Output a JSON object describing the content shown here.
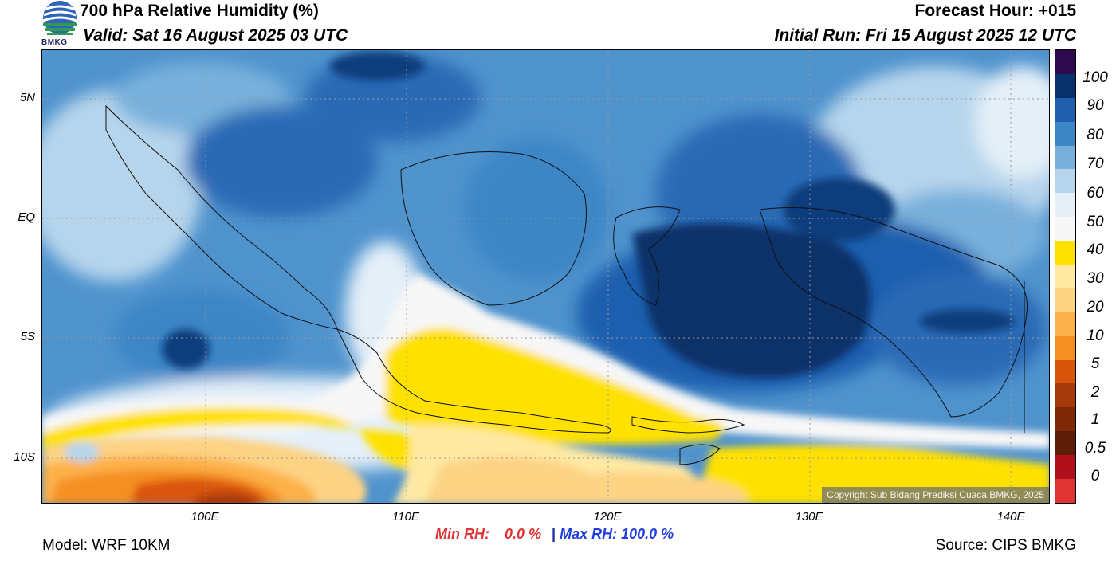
{
  "header": {
    "title": "700 hPa Relative Humidity (%)",
    "valid": "Valid: Sat 16 August 2025 03 UTC",
    "forecast_hour": "Forecast Hour: +015",
    "initial_run": "Initial Run: Fri 15 August 2025 12 UTC",
    "logo_text": "BMKG"
  },
  "map": {
    "lat_labels": [
      "5N",
      "EQ",
      "5S",
      "10S"
    ],
    "lon_labels": [
      "100E",
      "110E",
      "120E",
      "130E",
      "140E"
    ],
    "copyright": "Copyright Sub Bidang Prediksi Cuaca BMKG, 2025"
  },
  "colorbar": {
    "labels": [
      "100",
      "90",
      "80",
      "70",
      "60",
      "50",
      "40",
      "30",
      "20",
      "10",
      "5",
      "2",
      "1",
      "0.5",
      "0"
    ],
    "colors": [
      "#2d0a4e",
      "#08306b",
      "#1f5fae",
      "#3d86c6",
      "#78b0db",
      "#b6d5ec",
      "#e4eff8",
      "#f7f7f7",
      "#ffe100",
      "#ffe9a3",
      "#fdd384",
      "#fdb14a",
      "#f58f22",
      "#d9540b",
      "#a43a0a",
      "#7e2a08",
      "#5e1d08",
      "#b0101a",
      "#e03434"
    ]
  },
  "stats": {
    "min_label": "Min RH:",
    "min_value": "0.0 %",
    "separator": "|",
    "max_label": "Max RH:",
    "max_value": "100.0 %"
  },
  "footer": {
    "model": "Model: WRF 10KM",
    "source": "Source: CIPS BMKG"
  }
}
